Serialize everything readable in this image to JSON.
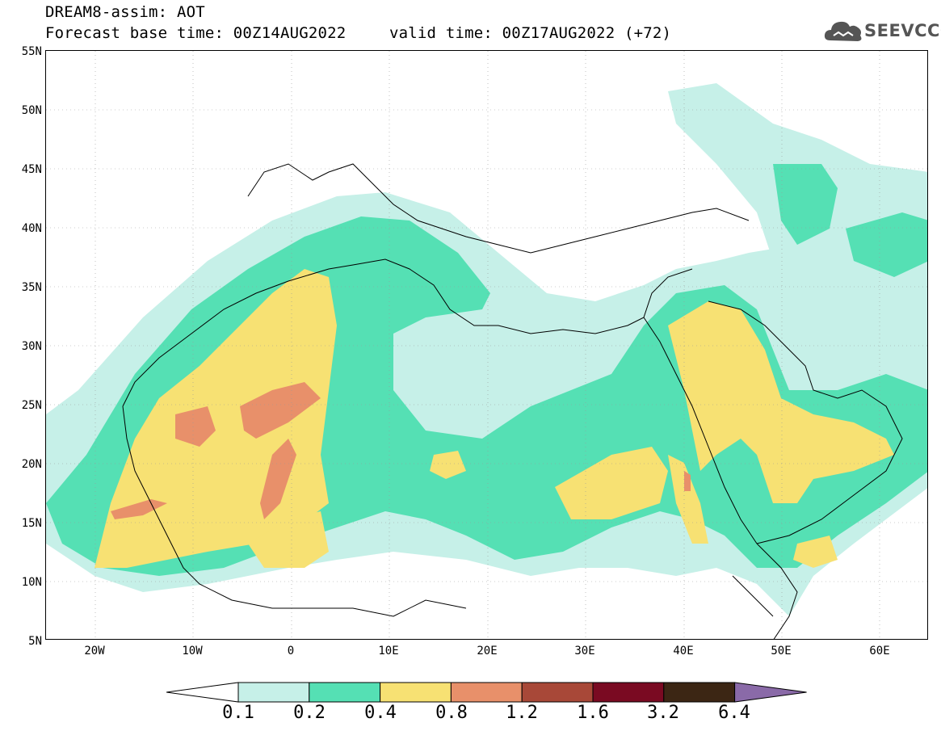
{
  "title": {
    "line1": "DREAM8-assim: AOT",
    "line2_left": "Forecast base time: 00Z14AUG2022",
    "line2_right": "valid time: 00Z17AUG2022 (+72)"
  },
  "logo": {
    "text": "SEEVCCC",
    "icon": "cloud-icon"
  },
  "map": {
    "lon_range": [
      -25,
      65
    ],
    "lat_range": [
      5,
      55
    ],
    "lat_ticks": [
      "55N",
      "50N",
      "45N",
      "40N",
      "35N",
      "30N",
      "25N",
      "20N",
      "15N",
      "10N",
      "5N"
    ],
    "lon_ticks": [
      "20W",
      "10W",
      "0",
      "10E",
      "20E",
      "30E",
      "40E",
      "50E",
      "60E"
    ]
  },
  "colorbar": {
    "labels": [
      "0.1",
      "0.2",
      "0.4",
      "0.8",
      "1.2",
      "1.6",
      "3.2",
      "6.4"
    ],
    "colors": [
      "#ffffff",
      "#c6f0e8",
      "#55e0b4",
      "#f7e173",
      "#e8906a",
      "#a84838",
      "#7a0a22",
      "#3c2614",
      "#8a6aa8"
    ]
  }
}
